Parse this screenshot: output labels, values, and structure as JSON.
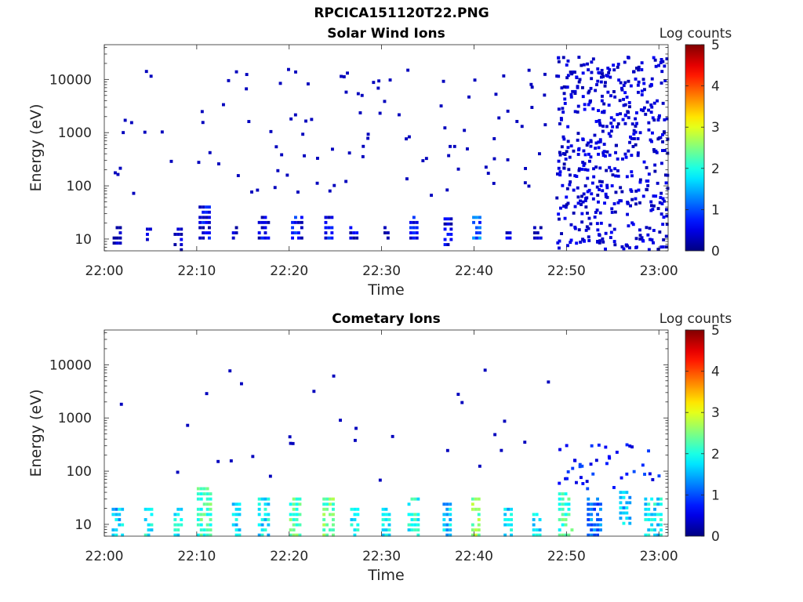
{
  "figure": {
    "title": "RPCICA151120T22.PNG"
  },
  "chart_data": [
    {
      "type": "heatmap",
      "title": "Solar Wind Ions",
      "xlabel": "Time",
      "ylabel": "Energy (eV)",
      "x_ticks": [
        "22:00",
        "22:10",
        "22:20",
        "22:30",
        "22:40",
        "22:50",
        "23:00"
      ],
      "x_range_minutes": [
        0,
        61
      ],
      "y_scale": "log",
      "y_ticks": [
        10,
        100,
        1000,
        10000
      ],
      "y_range": [
        6,
        45000
      ],
      "colorbar": {
        "label": "Log counts",
        "range": [
          0,
          5
        ],
        "ticks": [
          0,
          1,
          2,
          3,
          4,
          5
        ],
        "colormap": "jet"
      },
      "features": {
        "low_energy_bursts": [
          {
            "t": [
              0.9,
              1.6
            ],
            "e": [
              8,
              18
            ],
            "level": 0.3
          },
          {
            "t": [
              4.5,
              5.1
            ],
            "e": [
              6,
              18
            ],
            "level": 0.5
          },
          {
            "t": [
              7.5,
              8.2
            ],
            "e": [
              6,
              18
            ],
            "level": 0.4
          },
          {
            "t": [
              10.2,
              11.5
            ],
            "e": [
              10,
              40
            ],
            "level": 0.5
          },
          {
            "t": [
              13.8,
              14.4
            ],
            "e": [
              10,
              18
            ],
            "level": 0.3
          },
          {
            "t": [
              16.6,
              17.8
            ],
            "e": [
              10,
              25
            ],
            "level": 0.5
          },
          {
            "t": [
              20.2,
              21.3
            ],
            "e": [
              10,
              30
            ],
            "level": 0.6
          },
          {
            "t": [
              23.8,
              24.6
            ],
            "e": [
              10,
              25
            ],
            "level": 0.6
          },
          {
            "t": [
              26.5,
              27.2
            ],
            "e": [
              10,
              18
            ],
            "level": 0.3
          },
          {
            "t": [
              30.2,
              30.7
            ],
            "e": [
              10,
              18
            ],
            "level": 0.3
          },
          {
            "t": [
              33.0,
              34.0
            ],
            "e": [
              10,
              25
            ],
            "level": 0.5
          },
          {
            "t": [
              36.7,
              37.6
            ],
            "e": [
              6,
              25
            ],
            "level": 0.4
          },
          {
            "t": [
              39.8,
              40.6
            ],
            "e": [
              10,
              30
            ],
            "level": 1.1
          },
          {
            "t": [
              43.4,
              43.8
            ],
            "e": [
              10,
              18
            ],
            "level": 0.3
          },
          {
            "t": [
              46.4,
              47.1
            ],
            "e": [
              10,
              18
            ],
            "level": 0.3
          }
        ],
        "scatter_region": {
          "t": [
            48.8,
            60.8
          ],
          "e": [
            6,
            25000
          ],
          "level": 0.3
        }
      }
    },
    {
      "type": "heatmap",
      "title": "Cometary Ions",
      "xlabel": "Time",
      "ylabel": "Energy (eV)",
      "x_ticks": [
        "22:00",
        "22:10",
        "22:20",
        "22:30",
        "22:40",
        "22:50",
        "23:00"
      ],
      "x_range_minutes": [
        0,
        61
      ],
      "y_scale": "log",
      "y_ticks": [
        10,
        100,
        1000,
        10000
      ],
      "y_range": [
        6,
        45000
      ],
      "colorbar": {
        "label": "Log counts",
        "range": [
          0,
          5
        ],
        "ticks": [
          0,
          1,
          2,
          3,
          4,
          5
        ],
        "colormap": "jet"
      },
      "features": {
        "ion_bursts": [
          {
            "t": [
              0.8,
              1.8
            ],
            "e": [
              6,
              22
            ],
            "level": 1.6
          },
          {
            "t": [
              4.3,
              5.1
            ],
            "e": [
              6,
              22
            ],
            "level": 1.9
          },
          {
            "t": [
              7.5,
              8.2
            ],
            "e": [
              6,
              22
            ],
            "level": 1.8
          },
          {
            "t": [
              10.0,
              11.6
            ],
            "e": [
              6,
              45
            ],
            "level": 2.2
          },
          {
            "t": [
              13.8,
              14.6
            ],
            "e": [
              6,
              25
            ],
            "level": 1.7
          },
          {
            "t": [
              16.6,
              17.8
            ],
            "e": [
              6,
              30
            ],
            "level": 1.8
          },
          {
            "t": [
              20.0,
              21.3
            ],
            "e": [
              6,
              30
            ],
            "level": 2.3
          },
          {
            "t": [
              23.6,
              24.6
            ],
            "e": [
              6,
              30
            ],
            "level": 2.4
          },
          {
            "t": [
              26.6,
              27.3
            ],
            "e": [
              6,
              22
            ],
            "level": 1.8
          },
          {
            "t": [
              30.0,
              30.8
            ],
            "e": [
              6,
              22
            ],
            "level": 1.8
          },
          {
            "t": [
              32.8,
              34.0
            ],
            "e": [
              6,
              30
            ],
            "level": 2.0
          },
          {
            "t": [
              36.6,
              37.6
            ],
            "e": [
              6,
              25
            ],
            "level": 1.6
          },
          {
            "t": [
              39.7,
              40.7
            ],
            "e": [
              6,
              30
            ],
            "level": 2.5
          },
          {
            "t": [
              43.2,
              44.0
            ],
            "e": [
              6,
              22
            ],
            "level": 1.7
          },
          {
            "t": [
              46.3,
              47.1
            ],
            "e": [
              6,
              22
            ],
            "level": 1.8
          },
          {
            "t": [
              49.1,
              50.5
            ],
            "e": [
              6,
              40
            ],
            "level": 2.2
          },
          {
            "t": [
              52.2,
              53.8
            ],
            "e": [
              6,
              30
            ],
            "level": 1.2
          },
          {
            "t": [
              55.7,
              57.0
            ],
            "e": [
              10,
              45
            ],
            "level": 1.6
          },
          {
            "t": [
              58.4,
              60.3
            ],
            "e": [
              6,
              30
            ],
            "level": 1.8
          }
        ]
      }
    }
  ]
}
